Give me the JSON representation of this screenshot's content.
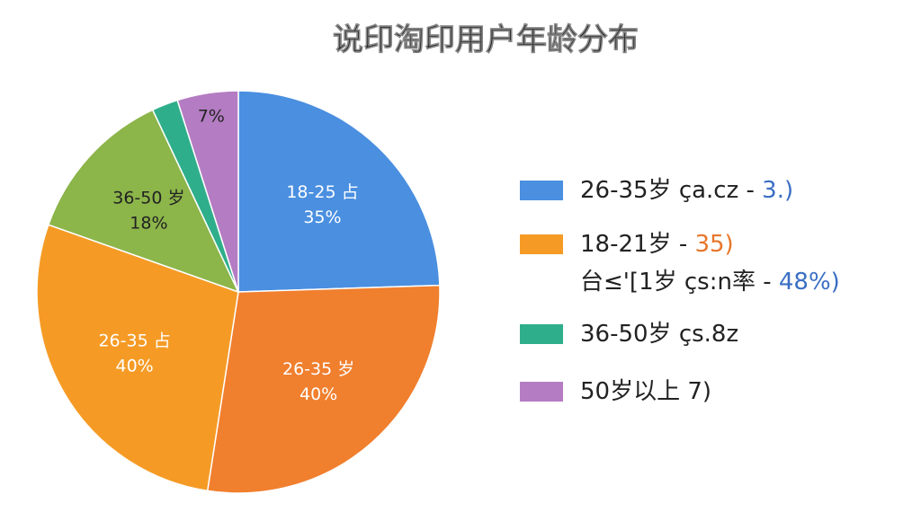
{
  "chart_data": {
    "type": "pie",
    "title": "说印淘印用户年龄分布",
    "categories": [
      "18-25 占",
      "26-35 岁",
      "26-35 占",
      "36-50 岁",
      null,
      null
    ],
    "values": [
      35,
      40,
      40,
      18,
      3,
      7
    ],
    "value_labels": [
      "35%",
      "40%",
      "40%",
      "18%",
      null,
      "7%"
    ],
    "colors": [
      "#4a8fe0",
      "#f07f2e",
      "#f59b25",
      "#8cb54a",
      "#2fae8b",
      "#b47cc2"
    ],
    "legend": [
      {
        "color": "#4a8fe0",
        "lines": [
          {
            "text": "26-35岁 ça.cz  - ",
            "accent": "3.)",
            "accent_color": "#3a6fc4"
          }
        ]
      },
      {
        "color": "#f59b25",
        "lines": [
          {
            "text": "18-21岁 - ",
            "accent": "35)",
            "accent_color": "#e8762a"
          },
          {
            "text": "台≤'[1岁 çs:n率  - ",
            "accent": "48%)",
            "accent_color": "#3a6fc4"
          }
        ]
      },
      {
        "color": "#2fae8b",
        "lines": [
          {
            "text": "36-50岁 çs.8z"
          }
        ]
      },
      {
        "color": "#b47cc2",
        "lines": [
          {
            "text": "50岁以上  7)"
          }
        ]
      }
    ]
  }
}
